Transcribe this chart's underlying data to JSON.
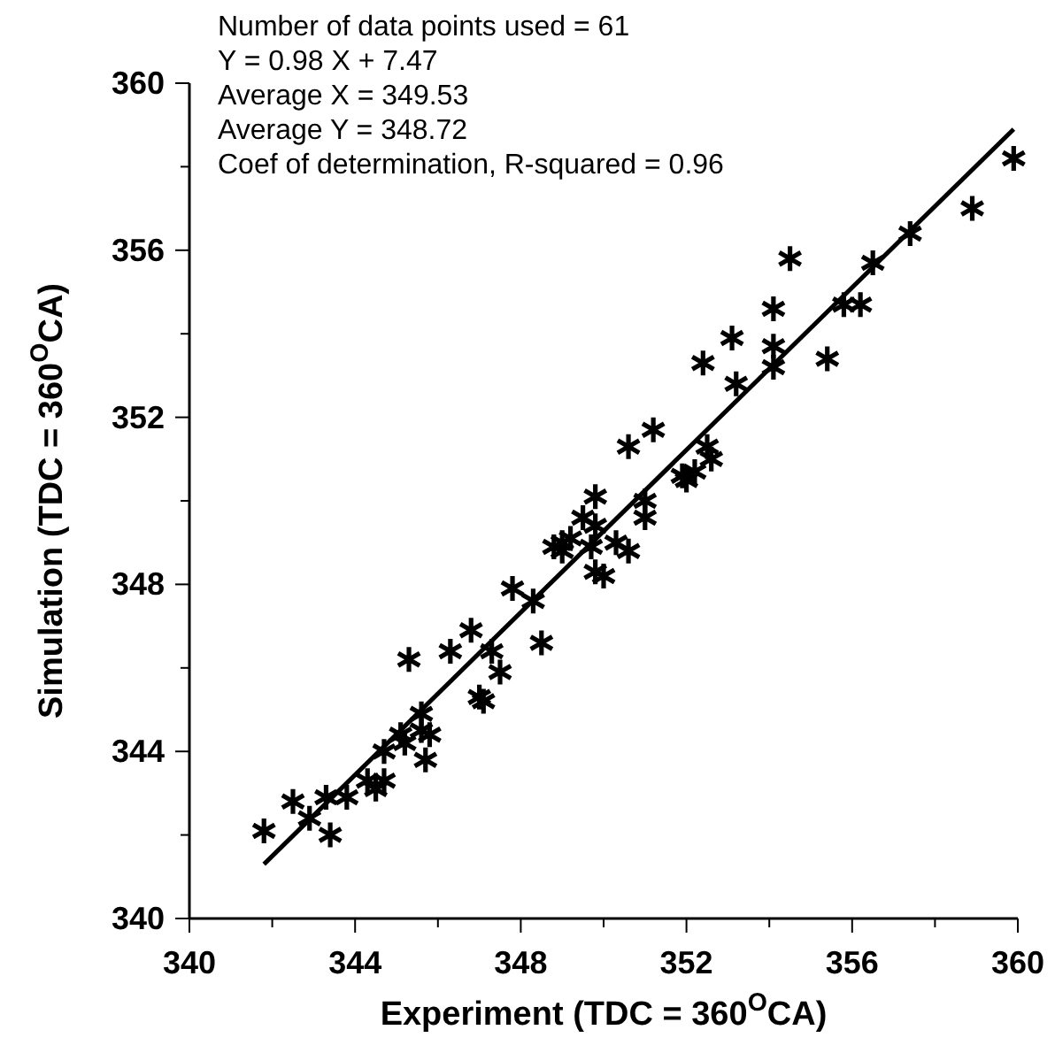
{
  "chart_data": {
    "type": "scatter",
    "xlabel": "Experiment (TDC = 360$^{O}$CA)",
    "ylabel": "Simulation (TDC = 360$^{O}$CA)",
    "annotations": [
      "Number of data points used = 61",
      "Y = 0.98 X + 7.47",
      "Average X = 349.53",
      "Average Y = 348.72",
      "Coef of determination, R-squared = 0.96"
    ],
    "xlim": [
      340,
      360
    ],
    "ylim": [
      340,
      360
    ],
    "xticks": [
      340,
      {
        "value": 342,
        "label": null
      },
      344,
      {
        "value": 346,
        "label": null
      },
      348,
      {
        "value": 350,
        "label": null
      },
      352,
      {
        "value": 354,
        "label": null
      },
      356,
      {
        "value": 358,
        "label": null
      },
      360
    ],
    "yticks": [
      340,
      {
        "value": 342,
        "label": null
      },
      344,
      {
        "value": 346,
        "label": null
      },
      348,
      {
        "value": 350,
        "label": null
      },
      352,
      {
        "value": 354,
        "label": null
      },
      356,
      {
        "value": 358,
        "label": null
      },
      360
    ],
    "grid": false,
    "series": [
      {
        "marker": "cross",
        "color": "#000000",
        "x": [
          341.8,
          342.5,
          342.9,
          343.4,
          343.3,
          343.8,
          344.3,
          344.7,
          344.7,
          345.1,
          345.2,
          345.6,
          345.8,
          345.7,
          345.6,
          345.3,
          346.3,
          346.8,
          347.0,
          347.5,
          347.3,
          347.8,
          348.3,
          348.5,
          349.0,
          349.0,
          349.7,
          349.8,
          349.8,
          349.5,
          349.2,
          350.3,
          349.8,
          350.6,
          351.0,
          351.0,
          350.6,
          351.2,
          351.9,
          352.0,
          352.2,
          352.6,
          352.5,
          353.2,
          354.1,
          352.4,
          355.4,
          353.1,
          354.1,
          354.1,
          354.5,
          355.8,
          356.2,
          356.5,
          357.4,
          358.9,
          359.9,
          348.8,
          347.1,
          344.5,
          350.0
        ],
        "values": [
          342.1,
          342.8,
          342.4,
          342.0,
          342.9,
          342.9,
          343.3,
          343.3,
          344.0,
          344.4,
          344.2,
          344.5,
          344.4,
          343.8,
          344.9,
          346.2,
          346.4,
          346.9,
          345.3,
          345.9,
          346.4,
          347.9,
          347.6,
          346.6,
          349.0,
          348.8,
          348.9,
          348.3,
          350.1,
          349.6,
          349.1,
          349.0,
          349.4,
          348.8,
          349.6,
          350.0,
          351.3,
          351.7,
          350.6,
          350.5,
          350.7,
          351.0,
          351.3,
          352.8,
          353.2,
          353.3,
          353.4,
          353.9,
          353.7,
          354.6,
          355.8,
          354.7,
          354.7,
          355.7,
          356.4,
          357.0,
          358.2,
          348.9,
          345.2,
          343.1,
          348.2
        ]
      },
      {
        "type": "line",
        "marker": "none",
        "line_style": "solid",
        "color": "#000000",
        "x": [
          341.8,
          359.9
        ],
        "values": [
          341.3,
          358.9
        ]
      }
    ]
  }
}
